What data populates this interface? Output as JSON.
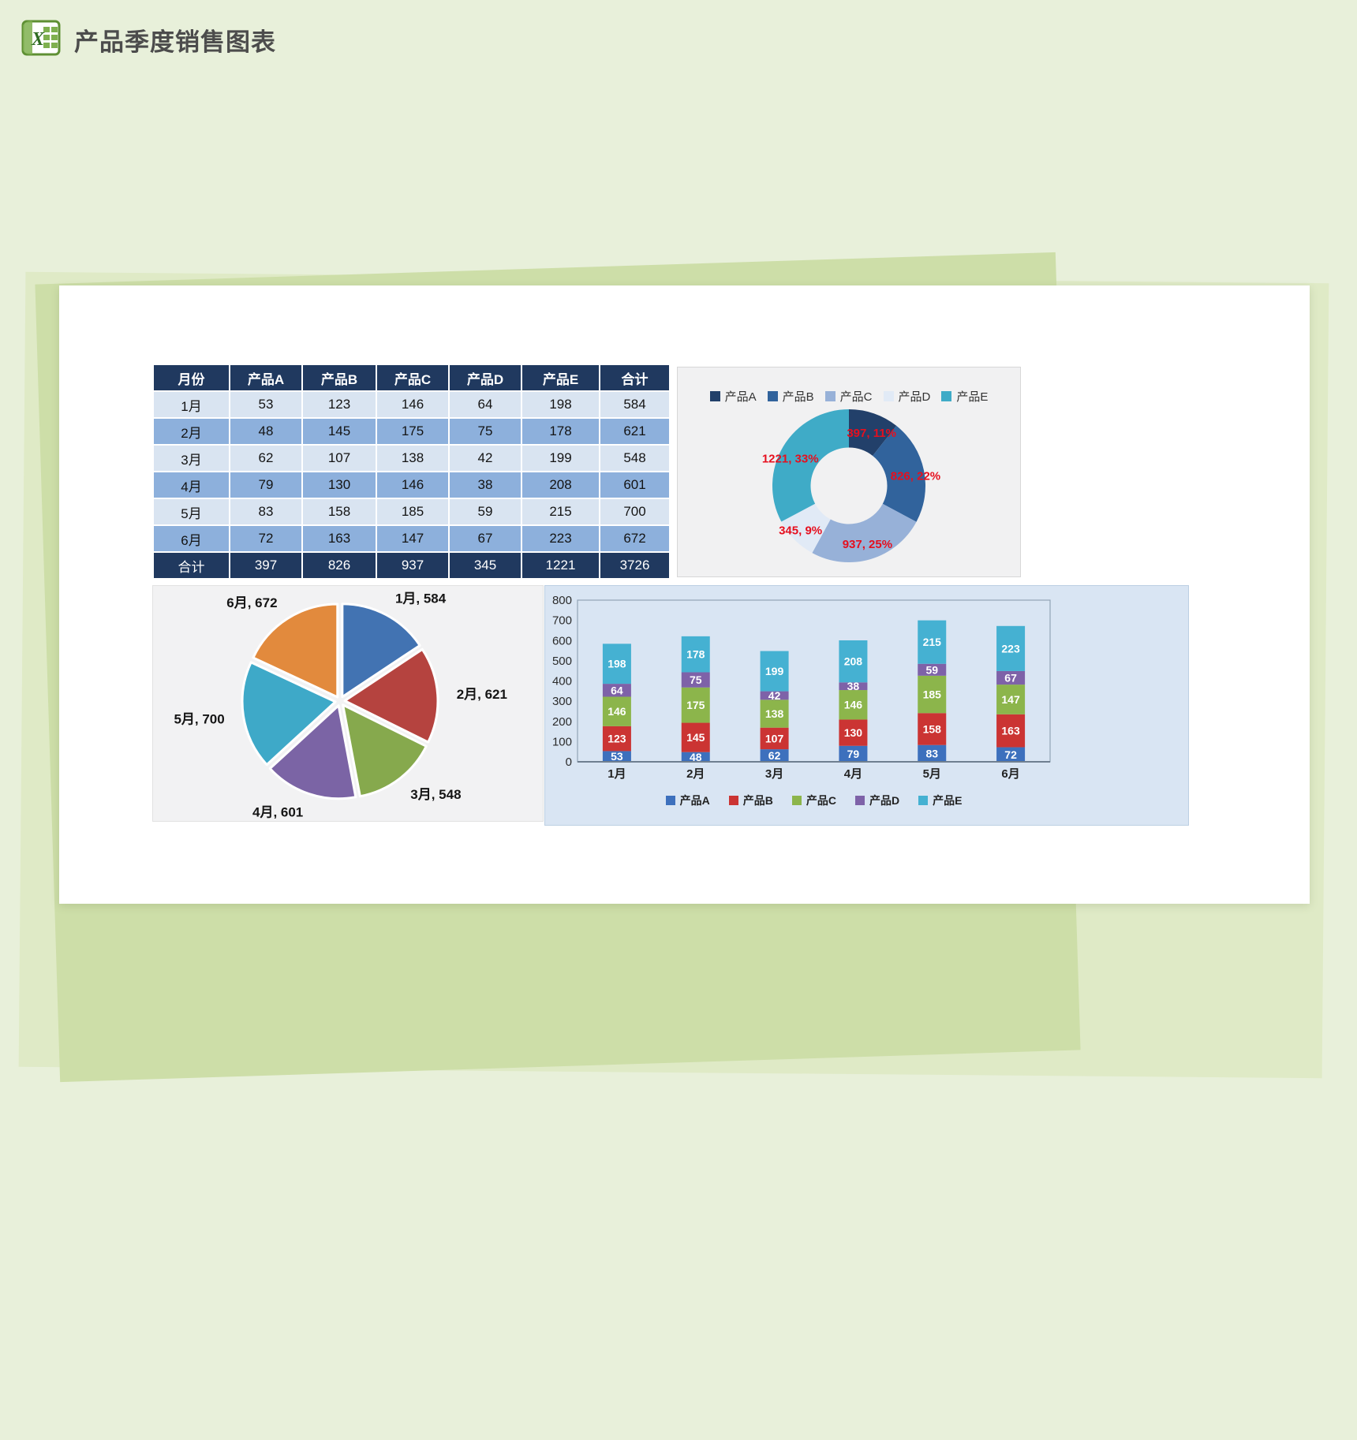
{
  "header": {
    "title": "产品季度销售图表"
  },
  "table": {
    "columns": [
      "月份",
      "产品A",
      "产品B",
      "产品C",
      "产品D",
      "产品E",
      "合计"
    ],
    "rows": [
      [
        "1月",
        53,
        123,
        146,
        64,
        198,
        584
      ],
      [
        "2月",
        48,
        145,
        175,
        75,
        178,
        621
      ],
      [
        "3月",
        62,
        107,
        138,
        42,
        199,
        548
      ],
      [
        "4月",
        79,
        130,
        146,
        38,
        208,
        601
      ],
      [
        "5月",
        83,
        158,
        185,
        59,
        215,
        700
      ],
      [
        "6月",
        72,
        163,
        147,
        67,
        223,
        672
      ]
    ],
    "total_row": [
      "合计",
      397,
      826,
      937,
      345,
      1221,
      3726
    ]
  },
  "chart_data": [
    {
      "type": "pie",
      "subtype": "donut",
      "title": "",
      "labels": [
        "产品A",
        "产品B",
        "产品C",
        "产品D",
        "产品E"
      ],
      "values": [
        397,
        826,
        937,
        345,
        1221
      ],
      "data_labels": [
        "397, 11%",
        "826, 22%",
        "937, 25%",
        "345, 9%",
        "1221, 33%"
      ],
      "colors": [
        "#22406a",
        "#31639c",
        "#97b1d8",
        "#e1eaf6",
        "#3fabc7"
      ],
      "label_color": "#e60f1e",
      "legend_position": "top",
      "inner_radius_ratio": 0.5
    },
    {
      "type": "pie",
      "subtype": "exploded",
      "title": "",
      "labels": [
        "1月",
        "2月",
        "3月",
        "4月",
        "5月",
        "6月"
      ],
      "values": [
        584,
        621,
        548,
        601,
        700,
        672
      ],
      "data_labels": [
        "1月, 584",
        "2月, 621",
        "3月, 548",
        "4月, 601",
        "5月, 700",
        "6月, 672"
      ],
      "colors": [
        "#4273b2",
        "#b5433f",
        "#86a94d",
        "#7b64a5",
        "#3ea9c8",
        "#e28a3d"
      ],
      "legend_position": "none"
    },
    {
      "type": "bar",
      "stacked": true,
      "title": "",
      "categories": [
        "1月",
        "2月",
        "3月",
        "4月",
        "5月",
        "6月"
      ],
      "series": [
        {
          "name": "产品A",
          "color": "#3d70bd",
          "values": [
            53,
            48,
            62,
            79,
            83,
            72
          ]
        },
        {
          "name": "产品B",
          "color": "#cb3433",
          "values": [
            123,
            145,
            107,
            130,
            158,
            163
          ]
        },
        {
          "name": "产品C",
          "color": "#8cb54b",
          "values": [
            146,
            175,
            138,
            146,
            185,
            147
          ]
        },
        {
          "name": "产品D",
          "color": "#7e62a8",
          "values": [
            64,
            75,
            42,
            38,
            59,
            67
          ]
        },
        {
          "name": "产品E",
          "color": "#45b1d2",
          "values": [
            198,
            178,
            199,
            208,
            215,
            223
          ]
        }
      ],
      "ylim": [
        0,
        800
      ],
      "yticks": [
        0,
        100,
        200,
        300,
        400,
        500,
        600,
        700,
        800
      ],
      "grid": false,
      "legend_position": "bottom"
    }
  ]
}
